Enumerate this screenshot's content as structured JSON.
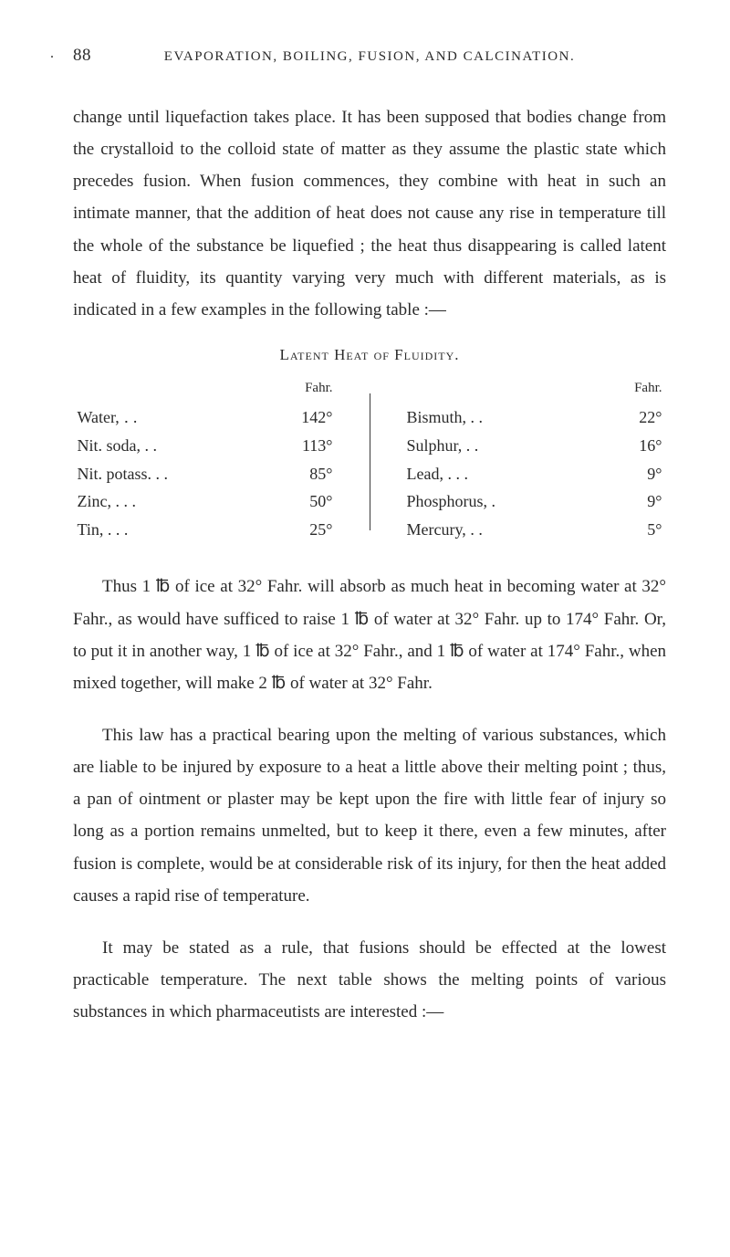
{
  "page": {
    "number": "88",
    "header": "EVAPORATION, BOILING, FUSION, AND CALCINATION.",
    "bullet": "."
  },
  "paragraphs": {
    "p1": "change until liquefaction takes place. It has been supposed that bodies change from the crystalloid to the colloid state of matter as they assume the plastic state which precedes fusion. When fusion commences, they combine with heat in such an intimate manner, that the addition of heat does not cause any rise in temperature till the whole of the substance be liquefied ; the heat thus disappearing is called latent heat of fluidity, its quantity varying very much with different materials, as is indicated in a few examples in the following table :—",
    "p2": "Thus 1 ℔ of ice at 32° Fahr. will absorb as much heat in becoming water at 32° Fahr., as would have sufficed to raise 1 ℔ of water at 32° Fahr. up to 174° Fahr. Or, to put it in another way, 1 ℔ of ice at 32° Fahr., and 1 ℔ of water at 174° Fahr., when mixed together, will make 2 ℔ of water at 32° Fahr.",
    "p3": "This law has a practical bearing upon the melting of various substances, which are liable to be injured by exposure to a heat a little above their melting point ; thus, a pan of ointment or plaster may be kept upon the fire with little fear of injury so long as a portion remains unmelted, but to keep it there, even a few minutes, after fusion is complete, would be at con­siderable risk of its injury, for then the heat added causes a rapid rise of temperature.",
    "p4": "It may be stated as a rule, that fusions should be effected at the lowest practicable temperature. The next table shows the melting points of various substances in which pharma­ceutists are interested :—"
  },
  "table": {
    "title": "Latent Heat of Fluidity.",
    "column_header": "Fahr.",
    "left": [
      {
        "label": "Water,",
        "dots": " ․ .",
        "value": "142°"
      },
      {
        "label": "Nit. soda,",
        "dots": " . .",
        "value": "113°"
      },
      {
        "label": "Nit. potass.",
        "dots": " . .",
        "value": "85°"
      },
      {
        "label": "Zinc, .",
        "dots": " . .",
        "value": "50°"
      },
      {
        "label": "Tin, .",
        "dots": " . .",
        "value": "25°"
      }
    ],
    "right": [
      {
        "label": "Bismuth,",
        "dots": " . .",
        "value": "22°"
      },
      {
        "label": "Sulphur,",
        "dots": " . .",
        "value": "16°"
      },
      {
        "label": "Lead, .",
        "dots": " . .",
        "value": "9°"
      },
      {
        "label": "Phosphorus,",
        "dots": " .",
        "value": "9°"
      },
      {
        "label": "Mercury,",
        "dots": " . .",
        "value": "5°"
      }
    ]
  }
}
